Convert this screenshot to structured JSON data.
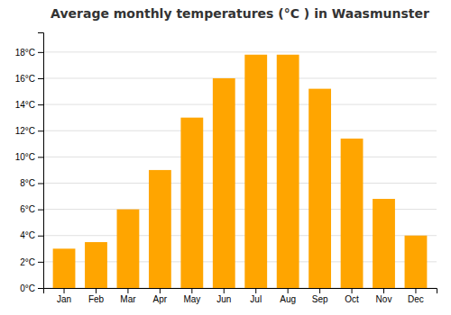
{
  "chart_data": {
    "type": "bar",
    "title": "Average monthly temperatures (°C ) in Waasmunster",
    "categories": [
      "Jan",
      "Feb",
      "Mar",
      "Apr",
      "May",
      "Jun",
      "Jul",
      "Aug",
      "Sep",
      "Oct",
      "Nov",
      "Dec"
    ],
    "values": [
      3.0,
      3.5,
      6.0,
      9.0,
      13.0,
      16.0,
      17.8,
      17.8,
      15.2,
      11.4,
      6.8,
      4.0
    ],
    "color": "#FFA500",
    "ylim": [
      0,
      19.5
    ],
    "yticks": [
      {
        "value": 0,
        "label": "0°C"
      },
      {
        "value": 2,
        "label": "2°C"
      },
      {
        "value": 4,
        "label": "4°C"
      },
      {
        "value": 6,
        "label": "6°C"
      },
      {
        "value": 8,
        "label": "8°C"
      },
      {
        "value": 10,
        "label": "10°C"
      },
      {
        "value": 12,
        "label": "12°C"
      },
      {
        "value": 14,
        "label": "14°C"
      },
      {
        "value": 16,
        "label": "16°C"
      },
      {
        "value": 18,
        "label": "18°C"
      }
    ],
    "grid": true
  }
}
